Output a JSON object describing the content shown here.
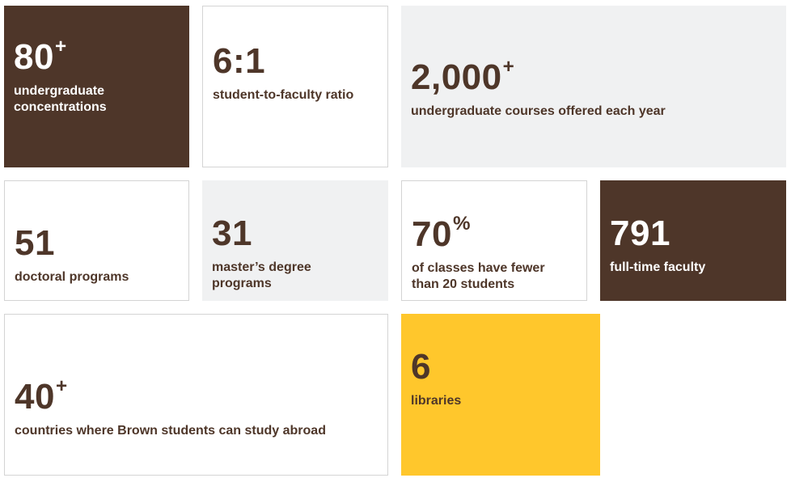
{
  "colors": {
    "brown": "#4e3629",
    "gold": "#ffc72c",
    "gray": "#f0f1f2",
    "white": "#ffffff",
    "border": "#d4d4d4"
  },
  "stats": [
    {
      "value": "80",
      "suffix": "+",
      "label": "undergraduate concentrations"
    },
    {
      "value": "6:1",
      "suffix": "",
      "label": "student-to-faculty ratio"
    },
    {
      "value": "2,000",
      "suffix": "+",
      "label": "undergraduate courses offered each year"
    },
    {
      "value": "51",
      "suffix": "",
      "label": "doctoral programs"
    },
    {
      "value": "31",
      "suffix": "",
      "label": "master’s degree programs"
    },
    {
      "value": "70",
      "suffix": "%",
      "label": "of classes have fewer than 20 students"
    },
    {
      "value": "791",
      "suffix": "",
      "label": "full-time faculty"
    },
    {
      "value": "40",
      "suffix": "+",
      "label": "countries where Brown students can study abroad"
    },
    {
      "value": "6",
      "suffix": "",
      "label": "libraries"
    }
  ]
}
